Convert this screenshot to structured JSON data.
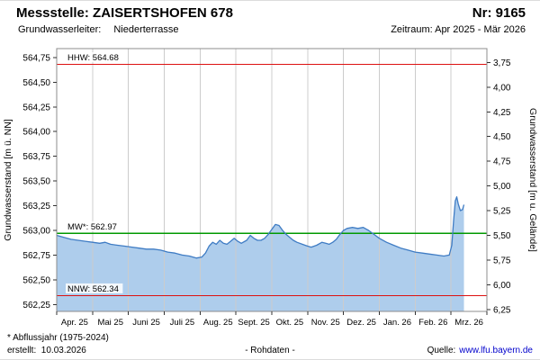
{
  "header": {
    "title": "Messstelle: ZAISERTSHOFEN 678",
    "number": "Nr: 9165",
    "aquifer_label": "Grundwasserleiter:",
    "aquifer_value": "Niederterrasse",
    "period": "Zeitraum: Apr 2025 - Mär 2026"
  },
  "footer": {
    "footnote": "* Abflussjahr (1975-2024)",
    "created": "erstellt:  10.03.2026",
    "data_type": "- Rohdaten -",
    "source_label": "Quelle:",
    "source_link": "www.lfu.bayern.de"
  },
  "chart_data": {
    "type": "area",
    "title": "",
    "grid": true,
    "grid_color": "#cccccc",
    "plot_border_color": "#8c8c8c",
    "x_axis": {
      "months": 12,
      "labels": [
        "Apr. 25",
        "Mai 25",
        "Juni 25",
        "Juli 25",
        "Aug. 25",
        "Sept. 25",
        "Okt. 25",
        "Nov. 25",
        "Dez. 25",
        "Jan. 26",
        "Feb. 26",
        "Mrz. 26"
      ]
    },
    "y_axis_left": {
      "title": "Grundwasserstand [m ü. NN]",
      "min": 562.18,
      "max": 564.84,
      "ticks": [
        562.25,
        562.5,
        562.75,
        563.0,
        563.25,
        563.5,
        563.75,
        564.0,
        564.25,
        564.5,
        564.75
      ]
    },
    "y_axis_right": {
      "title": "Grundwasserstand [m u. Gelände]",
      "ground_elevation": 568.45,
      "ticks": [
        3.75,
        4.0,
        4.25,
        4.5,
        4.75,
        5.0,
        5.25,
        5.5,
        5.75,
        6.0,
        6.25
      ]
    },
    "reference_lines": [
      {
        "name": "HHW",
        "label": "HHW: 564.68",
        "value": 564.68,
        "color": "#dd1111"
      },
      {
        "name": "MW",
        "label": "MW*: 562.97",
        "value": 562.97,
        "color": "#009900"
      },
      {
        "name": "NNW",
        "label": "NNW: 562.34",
        "value": 562.34,
        "color": "#dd1111"
      }
    ],
    "series": [
      {
        "name": "Grundwasserstand Rohdaten",
        "color": "#3f7cc4",
        "fill": "#aecdec",
        "points": [
          [
            0,
            562.95
          ],
          [
            0.2,
            562.93
          ],
          [
            0.4,
            562.91
          ],
          [
            0.6,
            562.9
          ],
          [
            0.8,
            562.89
          ],
          [
            1,
            562.88
          ],
          [
            1.2,
            562.87
          ],
          [
            1.35,
            562.88
          ],
          [
            1.5,
            562.86
          ],
          [
            1.7,
            562.85
          ],
          [
            1.9,
            562.84
          ],
          [
            2.1,
            562.83
          ],
          [
            2.3,
            562.82
          ],
          [
            2.5,
            562.81
          ],
          [
            2.7,
            562.81
          ],
          [
            2.9,
            562.8
          ],
          [
            3.1,
            562.78
          ],
          [
            3.3,
            562.77
          ],
          [
            3.5,
            562.75
          ],
          [
            3.7,
            562.74
          ],
          [
            3.9,
            562.72
          ],
          [
            4.05,
            562.73
          ],
          [
            4.15,
            562.77
          ],
          [
            4.25,
            562.84
          ],
          [
            4.35,
            562.88
          ],
          [
            4.45,
            562.86
          ],
          [
            4.55,
            562.9
          ],
          [
            4.65,
            562.87
          ],
          [
            4.75,
            562.86
          ],
          [
            4.85,
            562.89
          ],
          [
            4.95,
            562.92
          ],
          [
            5.05,
            562.89
          ],
          [
            5.15,
            562.87
          ],
          [
            5.3,
            562.9
          ],
          [
            5.4,
            562.95
          ],
          [
            5.5,
            562.92
          ],
          [
            5.6,
            562.9
          ],
          [
            5.7,
            562.9
          ],
          [
            5.8,
            562.92
          ],
          [
            5.9,
            562.96
          ],
          [
            6,
            563.01
          ],
          [
            6.1,
            563.06
          ],
          [
            6.2,
            563.05
          ],
          [
            6.3,
            563.0
          ],
          [
            6.4,
            562.96
          ],
          [
            6.5,
            562.93
          ],
          [
            6.6,
            562.9
          ],
          [
            6.7,
            562.88
          ],
          [
            6.85,
            562.86
          ],
          [
            7,
            562.84
          ],
          [
            7.1,
            562.83
          ],
          [
            7.25,
            562.85
          ],
          [
            7.4,
            562.88
          ],
          [
            7.5,
            562.87
          ],
          [
            7.6,
            562.86
          ],
          [
            7.7,
            562.88
          ],
          [
            7.8,
            562.91
          ],
          [
            7.9,
            562.96
          ],
          [
            8,
            563.0
          ],
          [
            8.1,
            563.02
          ],
          [
            8.25,
            563.03
          ],
          [
            8.4,
            563.02
          ],
          [
            8.55,
            563.03
          ],
          [
            8.7,
            563.0
          ],
          [
            8.85,
            562.96
          ],
          [
            9,
            562.92
          ],
          [
            9.2,
            562.88
          ],
          [
            9.4,
            562.85
          ],
          [
            9.6,
            562.82
          ],
          [
            9.8,
            562.8
          ],
          [
            10,
            562.78
          ],
          [
            10.2,
            562.77
          ],
          [
            10.4,
            562.76
          ],
          [
            10.6,
            562.75
          ],
          [
            10.8,
            562.74
          ],
          [
            10.95,
            562.75
          ],
          [
            11.02,
            562.85
          ],
          [
            11.07,
            563.1
          ],
          [
            11.12,
            563.3
          ],
          [
            11.16,
            563.34
          ],
          [
            11.2,
            563.27
          ],
          [
            11.26,
            563.2
          ],
          [
            11.32,
            563.21
          ],
          [
            11.36,
            563.26
          ]
        ]
      }
    ]
  }
}
